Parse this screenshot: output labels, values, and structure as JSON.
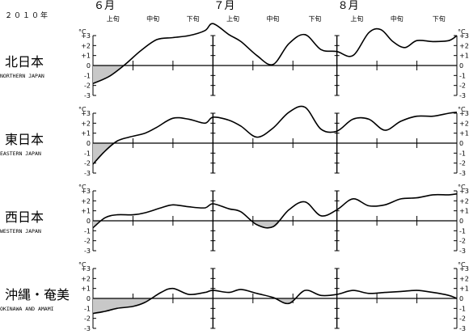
{
  "year_label": "２０１０年",
  "months": [
    "６月",
    "７月",
    "８月"
  ],
  "dekads": [
    "上旬",
    "中旬",
    "下旬",
    "上旬",
    "中旬",
    "下旬",
    "上旬",
    "中旬",
    "下旬"
  ],
  "unit": "°C",
  "y_ticks": [
    "+3",
    "+2",
    "+1",
    "0",
    "-1",
    "-2",
    "-3"
  ],
  "colors": {
    "line": "#000000",
    "negative_fill": "#c8c8c8",
    "axis": "#000000"
  },
  "chart_data": [
    {
      "type": "line",
      "name_jp": "北日本",
      "name_en": "NORTHERN JAPAN",
      "ylim": [
        -3,
        3
      ],
      "x_unit": "day (Jun 1 = 1)",
      "x": [
        1,
        5,
        9,
        13,
        17,
        21,
        25,
        29,
        31,
        35,
        38,
        42,
        46,
        50,
        54,
        58,
        62,
        66,
        70,
        73,
        76,
        79,
        82,
        86,
        90,
        92
      ],
      "values": [
        -1.8,
        -1.1,
        0.1,
        1.5,
        2.6,
        2.8,
        3.0,
        3.5,
        4.2,
        3.1,
        2.4,
        1.0,
        0.1,
        2.2,
        3.1,
        1.6,
        1.4,
        1.0,
        3.3,
        3.6,
        2.4,
        1.8,
        2.5,
        2.4,
        2.5,
        3.0
      ]
    },
    {
      "type": "line",
      "name_jp": "東日本",
      "name_en": "EASTERN JAPAN",
      "ylim": [
        -3,
        3
      ],
      "x_unit": "day (Jun 1 = 1)",
      "x": [
        1,
        4,
        7,
        10,
        14,
        17,
        21,
        25,
        29,
        31,
        35,
        38,
        42,
        46,
        50,
        54,
        58,
        62,
        66,
        70,
        74,
        78,
        82,
        86,
        90,
        92
      ],
      "values": [
        -2.1,
        -0.8,
        0.2,
        0.6,
        1.0,
        1.6,
        2.5,
        2.4,
        2.0,
        2.6,
        2.3,
        1.7,
        0.6,
        1.5,
        3.1,
        3.6,
        1.4,
        1.2,
        2.4,
        2.4,
        1.3,
        2.2,
        2.7,
        2.7,
        3.0,
        3.1
      ]
    },
    {
      "type": "line",
      "name_jp": "西日本",
      "name_en": "WESTERN JAPAN",
      "ylim": [
        -3,
        3
      ],
      "x_unit": "day (Jun 1 = 1)",
      "x": [
        1,
        4,
        7,
        11,
        14,
        18,
        21,
        25,
        29,
        31,
        35,
        38,
        42,
        46,
        50,
        54,
        58,
        62,
        66,
        70,
        74,
        78,
        82,
        86,
        90,
        92
      ],
      "values": [
        -0.7,
        0.3,
        0.6,
        0.6,
        0.8,
        1.3,
        1.6,
        1.4,
        1.3,
        1.7,
        1.2,
        0.9,
        -0.4,
        -0.6,
        1.1,
        1.9,
        0.5,
        1.1,
        2.2,
        1.5,
        1.6,
        2.2,
        2.3,
        2.6,
        2.6,
        2.7
      ]
    },
    {
      "type": "line",
      "name_jp": "沖縄・奄美",
      "name_en": "OKINAWA AND AMAMI",
      "ylim": [
        -3,
        3
      ],
      "x_unit": "day (Jun 1 = 1)",
      "x": [
        1,
        4,
        7,
        11,
        14,
        18,
        21,
        25,
        29,
        31,
        35,
        38,
        42,
        46,
        50,
        54,
        58,
        62,
        66,
        70,
        74,
        78,
        82,
        86,
        90,
        92
      ],
      "values": [
        -1.5,
        -1.3,
        -1.0,
        -0.8,
        -0.4,
        0.6,
        1.0,
        0.4,
        0.6,
        0.8,
        0.6,
        0.9,
        0.5,
        0.1,
        -0.5,
        0.8,
        0.3,
        0.4,
        0.8,
        0.5,
        0.6,
        0.7,
        0.8,
        0.6,
        0.3,
        0.0
      ]
    }
  ]
}
